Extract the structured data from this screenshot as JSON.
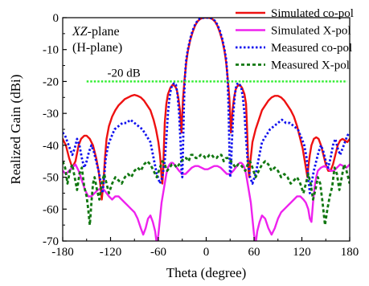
{
  "chart_data": {
    "type": "line",
    "title": "",
    "xlabel": "Theta (degree)",
    "ylabel": "Realized Gain (dBi)",
    "xlim": [
      -180,
      180
    ],
    "ylim": [
      -70,
      0
    ],
    "xticks": [
      -180,
      -120,
      -60,
      0,
      60,
      120,
      180
    ],
    "yticks": [
      0,
      -10,
      -20,
      -30,
      -40,
      -50,
      -60,
      -70
    ],
    "grid": false,
    "legend_position": "top-right",
    "annotation": {
      "prefix": "XZ",
      "suffix": "-plane",
      "line2": "(H-plane)"
    },
    "reference_line": {
      "y": -20,
      "label": "-20 dB",
      "color": "#33ee33"
    },
    "series": [
      {
        "name": "Simulated co-pol",
        "color": "#ee1111",
        "style": "solid",
        "x": [
          -180,
          -176,
          -172,
          -168,
          -164,
          -160,
          -157,
          -153,
          -150,
          -146,
          -142,
          -138,
          -135,
          -133,
          -131,
          -129,
          -127,
          -125,
          -122,
          -118,
          -114,
          -110,
          -106,
          -102,
          -98,
          -94,
          -90,
          -86,
          -82,
          -78,
          -74,
          -70,
          -66,
          -63,
          -60,
          -58,
          -57,
          -56,
          -55,
          -54,
          -53,
          -52,
          -50,
          -48,
          -45,
          -42,
          -39,
          -37,
          -35,
          -33,
          -32,
          -31,
          -30,
          -29,
          -28,
          -27,
          -26,
          -25,
          -23,
          -20,
          -17,
          -14,
          -11,
          -8,
          -5,
          -2,
          0,
          2,
          5,
          8,
          11,
          14,
          17,
          20,
          23,
          25,
          26,
          27,
          28,
          29,
          30,
          31,
          32,
          33,
          35,
          37,
          39,
          42,
          45,
          48,
          50,
          51,
          52,
          53,
          54,
          55,
          58,
          62,
          66,
          70,
          74,
          78,
          82,
          86,
          90,
          94,
          98,
          102,
          106,
          110,
          114,
          118,
          121,
          123,
          125,
          127,
          128,
          130,
          132,
          135,
          138,
          141,
          144,
          147,
          150,
          153,
          156,
          159,
          162,
          165,
          168,
          171,
          174,
          177,
          180
        ],
        "y": [
          -38,
          -40,
          -44,
          -47,
          -45,
          -40,
          -38,
          -37,
          -37,
          -38,
          -40,
          -44,
          -48,
          -52,
          -57,
          -52,
          -44,
          -38,
          -34,
          -31,
          -29,
          -27.5,
          -26.5,
          -25.5,
          -25,
          -24.5,
          -24.2,
          -24.5,
          -25,
          -26,
          -27.5,
          -29,
          -32,
          -35,
          -39,
          -43,
          -46,
          -50,
          -52,
          -48,
          -40,
          -33,
          -27,
          -24,
          -22,
          -21,
          -21.5,
          -22.5,
          -25,
          -29,
          -33,
          -36,
          -30,
          -25,
          -22,
          -19,
          -16.5,
          -14,
          -10.5,
          -7,
          -4.5,
          -2.5,
          -1.2,
          -0.5,
          -0.1,
          0,
          0,
          0,
          -0.1,
          -0.5,
          -1.2,
          -2.5,
          -4.5,
          -7,
          -10.5,
          -14,
          -16.5,
          -19,
          -22,
          -25,
          -30,
          -36,
          -33,
          -29,
          -25,
          -22.5,
          -21.5,
          -21,
          -22,
          -24,
          -27,
          -33,
          -40,
          -48,
          -50,
          -46,
          -39,
          -35,
          -32,
          -29,
          -27.5,
          -26,
          -25,
          -24.5,
          -24.5,
          -25,
          -26,
          -27.5,
          -29,
          -31,
          -34,
          -38,
          -41,
          -44,
          -47,
          -50,
          -47,
          -43,
          -40,
          -38,
          -37.5,
          -38,
          -40,
          -43,
          -46,
          -48,
          -48,
          -46,
          -43,
          -40,
          -38.5,
          -38,
          -38.5,
          -39,
          -38
        ]
      },
      {
        "name": "Simulated X-pol",
        "color": "#ee22ee",
        "style": "solid",
        "x": [
          -180,
          -176,
          -172,
          -168,
          -164,
          -160,
          -156,
          -152,
          -148,
          -144,
          -140,
          -136,
          -132,
          -128,
          -125,
          -122,
          -118,
          -114,
          -110,
          -106,
          -102,
          -98,
          -94,
          -90,
          -86,
          -82,
          -79,
          -76,
          -73,
          -70,
          -67,
          -64,
          -62,
          -60,
          -58,
          -56,
          -54,
          -52,
          -50,
          -48,
          -46,
          -44,
          -42,
          -40,
          -37,
          -34,
          -30,
          -26,
          -22,
          -18,
          -14,
          -10,
          -6,
          -2,
          0,
          2,
          6,
          10,
          14,
          18,
          22,
          26,
          30,
          34,
          37,
          40,
          42,
          44,
          46,
          48,
          50,
          52,
          54,
          56,
          58,
          60,
          62,
          64,
          67,
          70,
          74,
          78,
          82,
          86,
          90,
          94,
          98,
          102,
          106,
          110,
          114,
          118,
          122,
          125,
          128,
          130,
          132,
          134,
          136,
          138,
          140,
          144,
          148,
          152,
          156,
          160,
          164,
          168,
          172,
          176,
          180
        ],
        "y": [
          -48,
          -49,
          -48,
          -47,
          -46,
          -48,
          -51,
          -54,
          -56,
          -56,
          -55,
          -54,
          -53.5,
          -54,
          -55,
          -56,
          -57,
          -56,
          -56,
          -57,
          -58,
          -59,
          -60,
          -61,
          -63,
          -66,
          -68,
          -66,
          -63,
          -62,
          -64,
          -67,
          -71,
          -68,
          -63,
          -58,
          -55,
          -52,
          -49,
          -47,
          -46,
          -45.5,
          -45.5,
          -46,
          -47,
          -48,
          -49,
          -49,
          -48,
          -47,
          -46.5,
          -46.5,
          -47,
          -47.5,
          -47.5,
          -47.5,
          -47,
          -46.5,
          -46.5,
          -47,
          -48,
          -49,
          -49,
          -48,
          -47,
          -46,
          -45.5,
          -45.5,
          -46,
          -47,
          -49,
          -52,
          -55,
          -58,
          -63,
          -68,
          -71,
          -67,
          -64,
          -62,
          -63,
          -66,
          -68,
          -66,
          -63,
          -61,
          -60,
          -59,
          -58,
          -57,
          -56,
          -56,
          -57,
          -58,
          -60,
          -63,
          -64,
          -58,
          -53,
          -50,
          -48,
          -47,
          -46.5,
          -47,
          -48,
          -48,
          -47,
          -46,
          -46.5,
          -47,
          -46
        ]
      },
      {
        "name": "Measured co-pol",
        "color": "#1111ee",
        "style": "dotted",
        "x": [
          -180,
          -177,
          -174,
          -171,
          -168,
          -165,
          -162,
          -159,
          -156,
          -153,
          -150,
          -147,
          -144,
          -141,
          -138,
          -135,
          -132,
          -130,
          -128,
          -126,
          -123,
          -120,
          -115,
          -110,
          -105,
          -100,
          -95,
          -90,
          -85,
          -80,
          -75,
          -70,
          -66,
          -62,
          -58,
          -55,
          -52,
          -50,
          -48,
          -46,
          -44,
          -42,
          -40,
          -38,
          -36,
          -34,
          -32,
          -31,
          -30,
          -29,
          -28,
          -27,
          -26,
          -25,
          -23,
          -20,
          -17,
          -14,
          -11,
          -8,
          -5,
          -2,
          0,
          2,
          5,
          8,
          11,
          14,
          17,
          20,
          23,
          25,
          26,
          27,
          28,
          29,
          30,
          31,
          32,
          34,
          36,
          38,
          40,
          42,
          44,
          46,
          48,
          50,
          52,
          55,
          58,
          62,
          66,
          70,
          75,
          80,
          85,
          90,
          95,
          100,
          105,
          110,
          115,
          120,
          123,
          126,
          128,
          130,
          132,
          135,
          138,
          141,
          144,
          147,
          150,
          153,
          156,
          159,
          162,
          165,
          168,
          171,
          174,
          177,
          180
        ],
        "y": [
          -36,
          -37,
          -39,
          -41,
          -43,
          -41,
          -38,
          -40,
          -44,
          -47,
          -45,
          -42,
          -40,
          -42,
          -45,
          -48,
          -52,
          -55,
          -50,
          -44,
          -40,
          -38,
          -35,
          -34,
          -33,
          -33,
          -32,
          -33,
          -34,
          -35,
          -37,
          -39,
          -44,
          -49,
          -52,
          -50,
          -45,
          -38,
          -30,
          -25,
          -22,
          -21,
          -20.5,
          -21,
          -24,
          -30,
          -40,
          -48,
          -50,
          -40,
          -28,
          -20,
          -16,
          -13,
          -10,
          -6.5,
          -4,
          -2.2,
          -1,
          -0.3,
          -0.1,
          0,
          0,
          0,
          -0.1,
          -0.3,
          -1,
          -2.2,
          -4,
          -6.5,
          -10,
          -13,
          -16,
          -20,
          -28,
          -40,
          -50,
          -48,
          -40,
          -30,
          -24,
          -21,
          -20.5,
          -21,
          -22,
          -25,
          -30,
          -38,
          -45,
          -50,
          -52,
          -49,
          -44,
          -39,
          -37,
          -35,
          -34,
          -33,
          -32,
          -33,
          -33,
          -34,
          -35,
          -38,
          -40,
          -44,
          -50,
          -55,
          -52,
          -48,
          -45,
          -42,
          -40,
          -42,
          -45,
          -47,
          -44,
          -40,
          -38,
          -41,
          -43,
          -41,
          -39,
          -37,
          -36
        ]
      },
      {
        "name": "Measured X-pol",
        "color": "#117711",
        "style": "dashed",
        "x": [
          -180,
          -177,
          -174,
          -171,
          -168,
          -165,
          -162,
          -159,
          -156,
          -153,
          -150,
          -148,
          -146,
          -144,
          -142,
          -140,
          -137,
          -134,
          -131,
          -128,
          -125,
          -122,
          -118,
          -114,
          -110,
          -106,
          -102,
          -98,
          -94,
          -90,
          -86,
          -82,
          -78,
          -74,
          -70,
          -66,
          -62,
          -58,
          -55,
          -52,
          -49,
          -46,
          -43,
          -40,
          -37,
          -34,
          -31,
          -28,
          -25,
          -22,
          -19,
          -16,
          -13,
          -10,
          -7,
          -4,
          -1,
          0,
          1,
          4,
          7,
          10,
          13,
          16,
          19,
          22,
          25,
          28,
          31,
          34,
          37,
          40,
          43,
          46,
          49,
          52,
          55,
          58,
          62,
          66,
          70,
          74,
          78,
          82,
          86,
          90,
          94,
          98,
          102,
          106,
          110,
          114,
          118,
          122,
          125,
          128,
          131,
          134,
          137,
          140,
          143,
          146,
          149,
          152,
          155,
          158,
          161,
          164,
          167,
          170,
          173,
          176,
          180
        ],
        "y": [
          -45,
          -47,
          -52,
          -48,
          -46,
          -50,
          -54,
          -49,
          -47,
          -53,
          -56,
          -60,
          -65,
          -58,
          -52,
          -50,
          -54,
          -57,
          -52,
          -49,
          -52,
          -55,
          -52,
          -50,
          -51,
          -52,
          -50,
          -49,
          -50,
          -48,
          -47,
          -48,
          -46,
          -45,
          -46,
          -48,
          -50,
          -47,
          -45,
          -46,
          -48,
          -47,
          -46,
          -46,
          -47,
          -46,
          -45,
          -44,
          -44,
          -45,
          -43,
          -43,
          -44,
          -44,
          -43,
          -43,
          -44,
          -44,
          -44,
          -43,
          -43,
          -44,
          -44,
          -43,
          -43,
          -45,
          -44,
          -44,
          -45,
          -46,
          -47,
          -46,
          -46,
          -47,
          -48,
          -46,
          -45,
          -47,
          -50,
          -48,
          -46,
          -45,
          -46,
          -48,
          -47,
          -48,
          -50,
          -49,
          -50,
          -52,
          -51,
          -50,
          -52,
          -55,
          -52,
          -49,
          -52,
          -57,
          -54,
          -50,
          -52,
          -58,
          -65,
          -60,
          -56,
          -53,
          -47,
          -49,
          -54,
          -50,
          -46,
          -48,
          -52
        ]
      }
    ]
  }
}
